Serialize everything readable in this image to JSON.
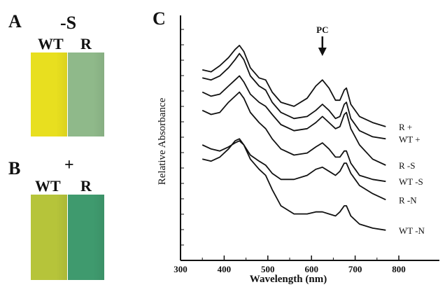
{
  "panels": {
    "a": {
      "letter": "A",
      "condition": "-S",
      "wt_label": "WT",
      "r_label": "R",
      "wt_color": "#e8df1f",
      "r_color": "#8fb98a"
    },
    "b": {
      "letter": "B",
      "condition": "+",
      "wt_label": "WT",
      "r_label": "R",
      "wt_color": "#b6c43a",
      "r_color": "#3f9a6e"
    },
    "c": {
      "letter": "C"
    }
  },
  "chart_data": {
    "type": "line",
    "title": "",
    "xlabel": "Wavelength (nm)",
    "ylabel": "Relative Absorbance",
    "xlim": [
      300,
      800
    ],
    "xticks": [
      300,
      400,
      500,
      600,
      700,
      800
    ],
    "y_tick_labels_shown": false,
    "grid": false,
    "annotation": {
      "text": "PC",
      "x": 625,
      "style": "downward arrow"
    },
    "series": [
      {
        "name": "R  +",
        "x": [
          350,
          370,
          390,
          410,
          425,
          435,
          445,
          460,
          480,
          495,
          510,
          530,
          560,
          590,
          610,
          625,
          640,
          655,
          665,
          675,
          680,
          690,
          710,
          740,
          770
        ],
        "y": [
          0.87,
          0.86,
          0.89,
          0.93,
          0.97,
          0.99,
          0.96,
          0.88,
          0.83,
          0.82,
          0.76,
          0.71,
          0.69,
          0.73,
          0.79,
          0.82,
          0.78,
          0.72,
          0.72,
          0.77,
          0.78,
          0.7,
          0.64,
          0.61,
          0.59
        ]
      },
      {
        "name": "WT  +",
        "x": [
          350,
          370,
          390,
          410,
          425,
          435,
          445,
          460,
          480,
          495,
          510,
          530,
          560,
          590,
          610,
          625,
          640,
          655,
          665,
          675,
          680,
          690,
          710,
          740,
          770
        ],
        "y": [
          0.83,
          0.82,
          0.84,
          0.88,
          0.92,
          0.95,
          0.92,
          0.84,
          0.79,
          0.77,
          0.71,
          0.66,
          0.63,
          0.64,
          0.67,
          0.7,
          0.67,
          0.63,
          0.64,
          0.7,
          0.71,
          0.63,
          0.57,
          0.54,
          0.53
        ]
      },
      {
        "name": "R  -S",
        "x": [
          350,
          370,
          390,
          410,
          425,
          435,
          445,
          460,
          480,
          495,
          510,
          530,
          560,
          590,
          610,
          625,
          640,
          655,
          665,
          675,
          680,
          690,
          710,
          740,
          770
        ],
        "y": [
          0.76,
          0.74,
          0.75,
          0.79,
          0.82,
          0.84,
          0.81,
          0.75,
          0.71,
          0.69,
          0.65,
          0.6,
          0.57,
          0.58,
          0.61,
          0.64,
          0.61,
          0.58,
          0.59,
          0.65,
          0.66,
          0.58,
          0.5,
          0.43,
          0.4
        ]
      },
      {
        "name": "WT  -S",
        "x": [
          350,
          370,
          390,
          410,
          425,
          435,
          445,
          460,
          480,
          495,
          510,
          530,
          560,
          590,
          610,
          625,
          640,
          655,
          665,
          675,
          680,
          690,
          710,
          740,
          770
        ],
        "y": [
          0.67,
          0.65,
          0.66,
          0.71,
          0.74,
          0.76,
          0.73,
          0.66,
          0.61,
          0.58,
          0.53,
          0.48,
          0.45,
          0.46,
          0.49,
          0.51,
          0.48,
          0.44,
          0.44,
          0.47,
          0.47,
          0.41,
          0.35,
          0.33,
          0.32
        ]
      },
      {
        "name": "R  -N",
        "x": [
          350,
          370,
          390,
          410,
          425,
          435,
          445,
          460,
          480,
          495,
          510,
          530,
          560,
          590,
          610,
          625,
          640,
          655,
          665,
          675,
          680,
          690,
          710,
          740,
          770
        ],
        "y": [
          0.5,
          0.48,
          0.47,
          0.49,
          0.51,
          0.52,
          0.5,
          0.45,
          0.42,
          0.4,
          0.36,
          0.33,
          0.33,
          0.35,
          0.38,
          0.39,
          0.37,
          0.35,
          0.37,
          0.41,
          0.41,
          0.36,
          0.3,
          0.26,
          0.23
        ]
      },
      {
        "name": "WT  -N",
        "x": [
          350,
          370,
          390,
          410,
          425,
          435,
          445,
          460,
          480,
          495,
          510,
          530,
          560,
          590,
          610,
          625,
          640,
          655,
          665,
          675,
          680,
          690,
          710,
          740,
          770
        ],
        "y": [
          0.43,
          0.42,
          0.44,
          0.48,
          0.52,
          0.53,
          0.5,
          0.43,
          0.38,
          0.35,
          0.28,
          0.2,
          0.16,
          0.16,
          0.17,
          0.17,
          0.16,
          0.15,
          0.17,
          0.2,
          0.2,
          0.15,
          0.11,
          0.09,
          0.08
        ]
      }
    ]
  }
}
